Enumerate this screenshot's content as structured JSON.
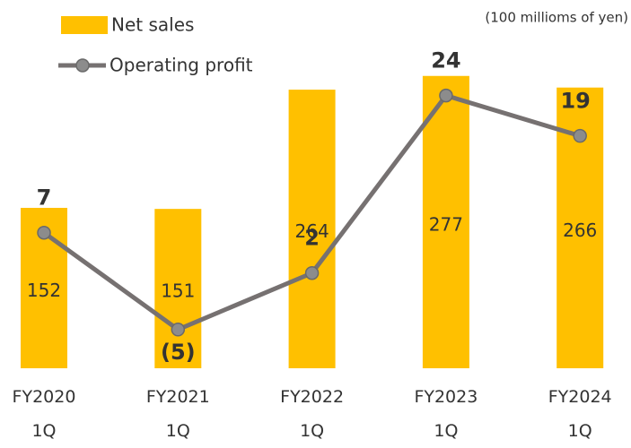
{
  "chart_data": {
    "type": "combo",
    "note": "(100 millioms of yen)",
    "categories": [
      "FY2020 1Q",
      "FY2021 1Q",
      "FY2022 1Q",
      "FY2023 1Q",
      "FY2024 1Q"
    ],
    "ylim": [
      0,
      315
    ],
    "y2lim": [
      -9.8,
      31.4
    ],
    "series": [
      {
        "name": "Net sales",
        "type": "bar",
        "color": "#ffc000",
        "values": [
          152,
          151,
          264,
          277,
          266
        ]
      },
      {
        "name": "Operating profit",
        "type": "line",
        "axis": "y2",
        "color": "#767171",
        "values": [
          7,
          -5,
          2,
          24,
          19
        ],
        "value_labels": [
          "7",
          "(5)",
          "2",
          "24",
          "19"
        ]
      }
    ]
  }
}
